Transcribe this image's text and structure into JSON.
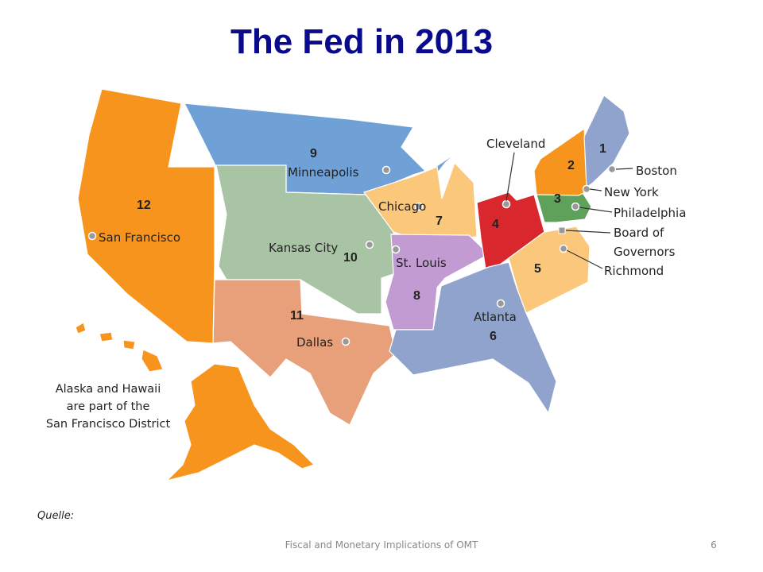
{
  "title": "The Fed in 2013",
  "map": {
    "districts": [
      {
        "number": 1,
        "city": "Boston"
      },
      {
        "number": 2,
        "city": "New York"
      },
      {
        "number": 3,
        "city": "Philadelphia"
      },
      {
        "number": 4,
        "city": "Cleveland"
      },
      {
        "number": 5,
        "city": "Richmond"
      },
      {
        "number": 6,
        "city": "Atlanta"
      },
      {
        "number": 7,
        "city": "Chicago"
      },
      {
        "number": 8,
        "city": "St. Louis"
      },
      {
        "number": 9,
        "city": "Minneapolis"
      },
      {
        "number": 10,
        "city": "Kansas City"
      },
      {
        "number": 11,
        "city": "Dallas"
      },
      {
        "number": 12,
        "city": "San Francisco"
      }
    ],
    "board": [
      "Board of",
      "Governors"
    ],
    "note": [
      "Alaska and Hawaii",
      "are part of the",
      "San Francisco District"
    ]
  },
  "source": "Quelle:",
  "footer": {
    "text": "Fiscal and Monetary Implications of OMT",
    "page": "6"
  }
}
